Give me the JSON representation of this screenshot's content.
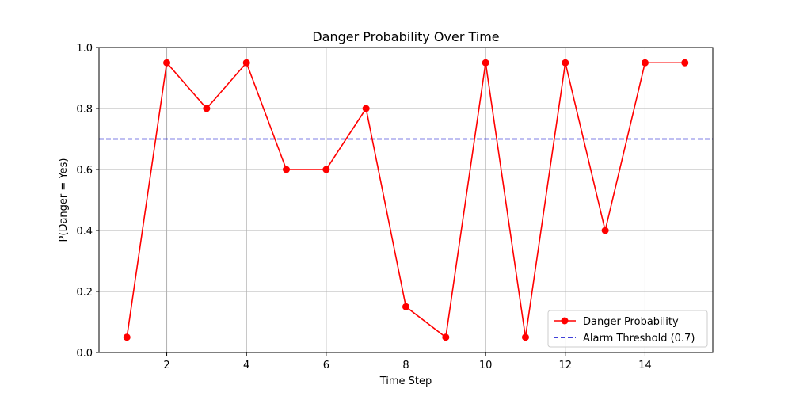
{
  "chart_data": {
    "type": "line",
    "title": "Danger Probability Over Time",
    "xlabel": "Time Step",
    "ylabel": "P(Danger = Yes)",
    "xlim": [
      0.3,
      15.7
    ],
    "ylim": [
      0.0,
      1.0
    ],
    "xticks": [
      2,
      4,
      6,
      8,
      10,
      12,
      14
    ],
    "yticks": [
      0.0,
      0.2,
      0.4,
      0.6,
      0.8,
      1.0
    ],
    "xtick_labels": [
      "2",
      "4",
      "6",
      "8",
      "10",
      "12",
      "14"
    ],
    "ytick_labels": [
      "0.0",
      "0.2",
      "0.4",
      "0.6",
      "0.8",
      "1.0"
    ],
    "grid": true,
    "legend_position": "lower-right",
    "series": [
      {
        "name": "Danger Probability",
        "color": "#ff0000",
        "marker": "circle",
        "x": [
          1,
          2,
          3,
          4,
          5,
          6,
          7,
          8,
          9,
          10,
          11,
          12,
          13,
          14,
          15
        ],
        "y": [
          0.05,
          0.95,
          0.8,
          0.95,
          0.6,
          0.6,
          0.8,
          0.15,
          0.05,
          0.95,
          0.05,
          0.95,
          0.4,
          0.95,
          0.95
        ]
      }
    ],
    "reference_lines": [
      {
        "name": "Alarm Threshold (0.7)",
        "orientation": "horizontal",
        "value": 0.7,
        "color": "#0000cc",
        "style": "dashed"
      }
    ]
  }
}
